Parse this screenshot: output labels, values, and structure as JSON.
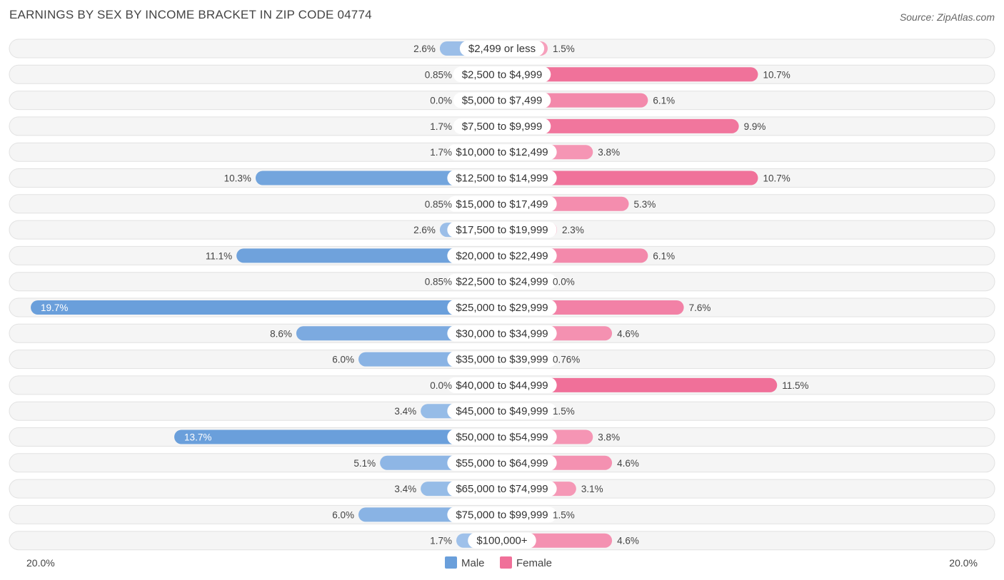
{
  "chart_data": {
    "type": "bar",
    "orientation": "horizontal-diverging",
    "title": "EARNINGS BY SEX BY INCOME BRACKET IN ZIP CODE 04774",
    "source": "Source: ZipAtlas.com",
    "categories": [
      "$2,499 or less",
      "$2,500 to $4,999",
      "$5,000 to $7,499",
      "$7,500 to $9,999",
      "$10,000 to $12,499",
      "$12,500 to $14,999",
      "$15,000 to $17,499",
      "$17,500 to $19,999",
      "$20,000 to $22,499",
      "$22,500 to $24,999",
      "$25,000 to $29,999",
      "$30,000 to $34,999",
      "$35,000 to $39,999",
      "$40,000 to $44,999",
      "$45,000 to $49,999",
      "$50,000 to $54,999",
      "$55,000 to $64,999",
      "$65,000 to $74,999",
      "$75,000 to $99,999",
      "$100,000+"
    ],
    "series": [
      {
        "name": "Male",
        "color": "#6a9fdb",
        "values": [
          2.6,
          0.85,
          0.0,
          1.7,
          1.7,
          10.3,
          0.85,
          2.6,
          11.1,
          0.85,
          19.7,
          8.6,
          6.0,
          0.0,
          3.4,
          13.7,
          5.1,
          3.4,
          6.0,
          1.7
        ],
        "labels": [
          "2.6%",
          "0.85%",
          "0.0%",
          "1.7%",
          "1.7%",
          "10.3%",
          "0.85%",
          "2.6%",
          "11.1%",
          "0.85%",
          "19.7%",
          "8.6%",
          "6.0%",
          "0.0%",
          "3.4%",
          "13.7%",
          "5.1%",
          "3.4%",
          "6.0%",
          "1.7%"
        ]
      },
      {
        "name": "Female",
        "color": "#f07099",
        "values": [
          1.5,
          10.7,
          6.1,
          9.9,
          3.8,
          10.7,
          5.3,
          2.3,
          6.1,
          0.0,
          7.6,
          4.6,
          0.76,
          11.5,
          1.5,
          3.8,
          4.6,
          3.1,
          1.5,
          4.6
        ],
        "labels": [
          "1.5%",
          "10.7%",
          "6.1%",
          "9.9%",
          "3.8%",
          "10.7%",
          "5.3%",
          "2.3%",
          "6.1%",
          "0.0%",
          "7.6%",
          "4.6%",
          "0.76%",
          "11.5%",
          "1.5%",
          "3.8%",
          "4.6%",
          "3.1%",
          "1.5%",
          "4.6%"
        ]
      }
    ],
    "xlim": [
      -20.0,
      20.0
    ],
    "axis_left_label": "20.0%",
    "axis_right_label": "20.0%",
    "legend": [
      "Male",
      "Female"
    ],
    "legend_position": "bottom-center"
  }
}
